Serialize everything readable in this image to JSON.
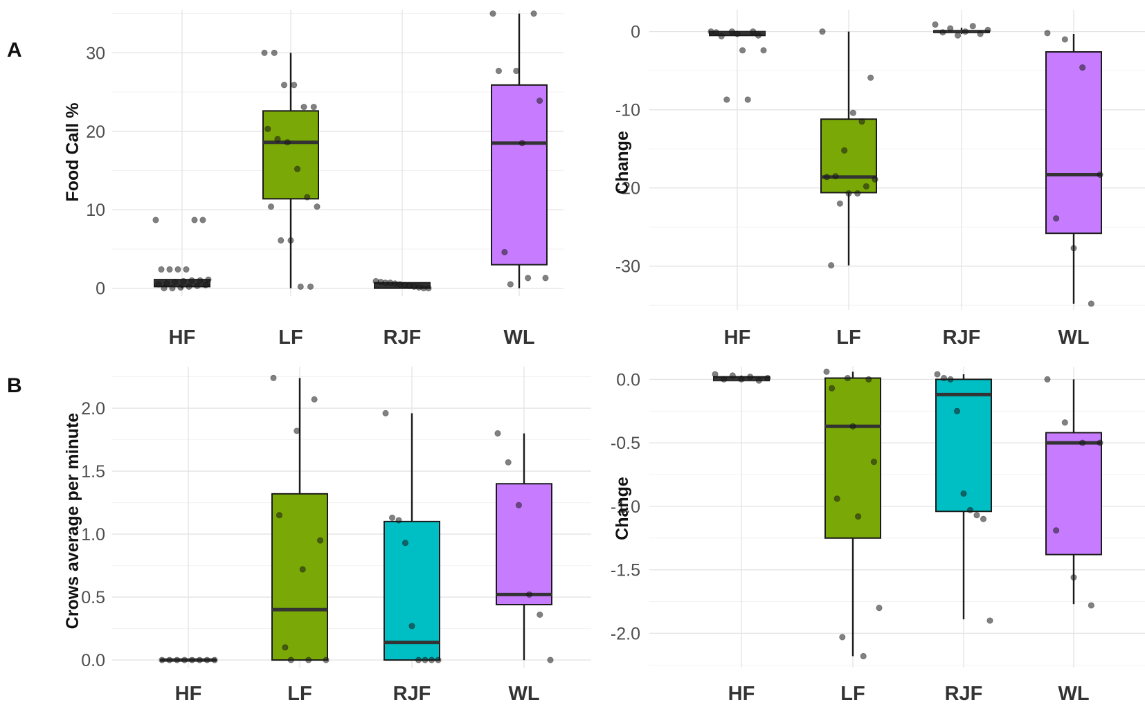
{
  "panel_labels": [
    "A",
    "B"
  ],
  "chart_data": [
    {
      "type": "box",
      "panel": "A",
      "title": "",
      "xlabel": "",
      "ylabel": "Food Call %",
      "categories": [
        "HF",
        "LF",
        "RJF",
        "WL"
      ],
      "ylim": [
        -1,
        35.5
      ],
      "yticks": [
        0,
        10,
        20,
        30
      ],
      "ytick_labels": [
        "0",
        "10",
        "20",
        "30"
      ],
      "boxes": [
        {
          "category": "HF",
          "q1": 0.2,
          "median": 0.8,
          "q3": 1.1,
          "whisker_low": 0.0,
          "whisker_high": 1.1,
          "color": "#333333",
          "points": [
            8.7,
            8.7,
            8.7,
            2.4,
            2.4,
            2.4,
            2.4,
            1.1,
            1.0,
            1.0,
            0.9,
            0.8,
            0.6,
            0.5,
            0.4,
            0.3,
            0.2,
            0.1,
            0.0,
            0.0
          ]
        },
        {
          "category": "LF",
          "q1": 11.4,
          "median": 18.6,
          "q3": 22.6,
          "whisker_low": 0.0,
          "whisker_high": 30.0,
          "color": "#7aa806",
          "points": [
            30.0,
            30.0,
            25.9,
            25.9,
            23.1,
            23.1,
            20.3,
            19.0,
            18.6,
            15.2,
            11.6,
            10.4,
            10.4,
            6.1,
            6.1,
            0.2,
            0.2
          ]
        },
        {
          "category": "RJF",
          "q1": 0.0,
          "median": 0.4,
          "q3": 0.7,
          "whisker_low": 0.0,
          "whisker_high": 0.7,
          "color": "#333333",
          "points": [
            0.9,
            0.8,
            0.7,
            0.7,
            0.6,
            0.5,
            0.4,
            0.3,
            0.2,
            0.1,
            0.0,
            0.0
          ]
        },
        {
          "category": "WL",
          "q1": 3.0,
          "median": 18.5,
          "q3": 25.9,
          "whisker_low": 0.0,
          "whisker_high": 35.0,
          "color": "#c77cff",
          "points": [
            35.0,
            35.0,
            27.7,
            27.7,
            23.9,
            18.5,
            4.6,
            1.3,
            1.3,
            0.5
          ]
        }
      ]
    },
    {
      "type": "box",
      "panel": "A-change",
      "title": "",
      "xlabel": "",
      "ylabel": "Change",
      "categories": [
        "HF",
        "LF",
        "RJF",
        "WL"
      ],
      "ylim": [
        -35.6,
        2.8
      ],
      "yticks": [
        0,
        -10,
        -20,
        -30
      ],
      "ytick_labels": [
        "0",
        "-10",
        "-20",
        "-30"
      ],
      "boxes": [
        {
          "category": "HF",
          "q1": -0.5,
          "median": -0.2,
          "q3": 0.0,
          "whisker_low": -0.6,
          "whisker_high": 0.0,
          "color": "#333333",
          "points": [
            0.0,
            0.0,
            0.0,
            -0.1,
            -0.3,
            -0.5,
            -0.6,
            -2.4,
            -2.4,
            -8.7,
            -8.7
          ]
        },
        {
          "category": "LF",
          "q1": -20.6,
          "median": -18.6,
          "q3": -11.2,
          "whisker_low": -29.9,
          "whisker_high": 0.0,
          "color": "#7aa806",
          "points": [
            0.0,
            -5.9,
            -11.5,
            -10.4,
            -15.2,
            -18.5,
            -18.6,
            -18.9,
            -19.8,
            -20.7,
            -20.7,
            -22.0,
            -29.9
          ]
        },
        {
          "category": "RJF",
          "q1": -0.1,
          "median": 0.0,
          "q3": 0.1,
          "whisker_low": -0.3,
          "whisker_high": 0.5,
          "color": "#333333",
          "points": [
            0.9,
            0.7,
            0.4,
            0.2,
            0.0,
            -0.1,
            -0.3,
            -0.5
          ]
        },
        {
          "category": "WL",
          "q1": -25.8,
          "median": -18.3,
          "q3": -2.6,
          "whisker_low": -34.8,
          "whisker_high": -0.3,
          "color": "#c77cff",
          "points": [
            -0.2,
            -1.0,
            -4.6,
            -18.3,
            -23.9,
            -27.7,
            -34.8
          ]
        }
      ]
    },
    {
      "type": "box",
      "panel": "B",
      "title": "",
      "xlabel": "",
      "ylabel": "Crows average per minute",
      "categories": [
        "HF",
        "LF",
        "RJF",
        "WL"
      ],
      "ylim": [
        -0.06,
        2.33
      ],
      "yticks": [
        0.0,
        0.5,
        1.0,
        1.5,
        2.0
      ],
      "ytick_labels": [
        "0.0",
        "0.5",
        "1.0",
        "1.5",
        "2.0"
      ],
      "boxes": [
        {
          "category": "HF",
          "q1": 0.0,
          "median": 0.0,
          "q3": 0.0,
          "whisker_low": 0.0,
          "whisker_high": 0.0,
          "color": "#333333",
          "points": [
            0.0,
            0.0,
            0.0,
            0.0,
            0.0,
            0.0,
            0.0,
            0.0
          ]
        },
        {
          "category": "LF",
          "q1": 0.0,
          "median": 0.4,
          "q3": 1.32,
          "whisker_low": 0.0,
          "whisker_high": 2.24,
          "color": "#7aa806",
          "points": [
            2.24,
            2.07,
            1.82,
            1.15,
            0.95,
            0.72,
            0.1,
            0.0,
            0.0,
            0.0
          ]
        },
        {
          "category": "RJF",
          "q1": 0.0,
          "median": 0.14,
          "q3": 1.1,
          "whisker_low": 0.0,
          "whisker_high": 1.96,
          "color": "#00bfc4",
          "points": [
            1.96,
            1.13,
            1.11,
            0.93,
            0.27,
            0.0,
            0.0,
            0.0,
            0.0
          ]
        },
        {
          "category": "WL",
          "q1": 0.44,
          "median": 0.52,
          "q3": 1.4,
          "whisker_low": 0.0,
          "whisker_high": 1.8,
          "color": "#c77cff",
          "points": [
            1.8,
            1.57,
            1.23,
            0.52,
            0.36,
            0.0
          ]
        }
      ]
    },
    {
      "type": "box",
      "panel": "B-change",
      "title": "",
      "xlabel": "",
      "ylabel": "Change",
      "categories": [
        "HF",
        "LF",
        "RJF",
        "WL"
      ],
      "ylim": [
        -2.27,
        0.1
      ],
      "yticks": [
        0.0,
        -0.5,
        -1.0,
        -1.5,
        -2.0
      ],
      "ytick_labels": [
        "0.0",
        "-0.5",
        "-1.0",
        "-1.5",
        "-2.0"
      ],
      "boxes": [
        {
          "category": "HF",
          "q1": -0.01,
          "median": 0.0,
          "q3": 0.02,
          "whisker_low": -0.01,
          "whisker_high": 0.03,
          "color": "#333333",
          "points": [
            0.04,
            0.03,
            0.02,
            0.01,
            0.0,
            0.0,
            -0.01
          ]
        },
        {
          "category": "LF",
          "q1": -1.25,
          "median": -0.37,
          "q3": 0.01,
          "whisker_low": -2.18,
          "whisker_high": 0.06,
          "color": "#7aa806",
          "points": [
            0.06,
            0.01,
            0.0,
            -0.07,
            -0.37,
            -0.65,
            -0.94,
            -1.08,
            -1.8,
            -2.03,
            -2.18
          ]
        },
        {
          "category": "RJF",
          "q1": -1.04,
          "median": -0.12,
          "q3": 0.0,
          "whisker_low": -1.89,
          "whisker_high": 0.04,
          "color": "#00bfc4",
          "points": [
            0.04,
            0.01,
            0.0,
            -0.25,
            -0.9,
            -1.03,
            -1.07,
            -1.1,
            -1.9
          ]
        },
        {
          "category": "WL",
          "q1": -1.38,
          "median": -0.5,
          "q3": -0.42,
          "whisker_low": -1.77,
          "whisker_high": 0.0,
          "color": "#c77cff",
          "points": [
            0.0,
            -0.34,
            -0.5,
            -0.5,
            -1.19,
            -1.56,
            -1.78
          ]
        }
      ]
    }
  ]
}
